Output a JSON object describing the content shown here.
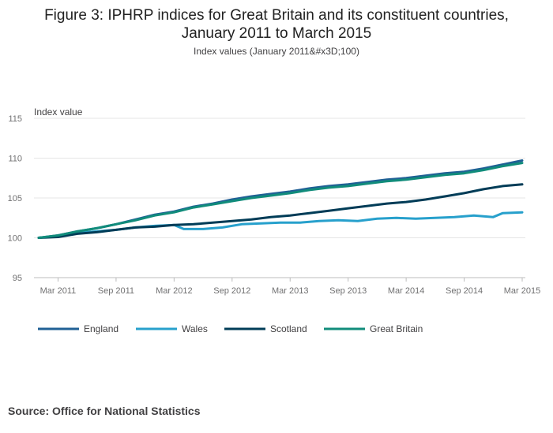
{
  "title_line1": "Figure 3: IPHRP indices for Great Britain and its constituent countries,",
  "title_line2": "January 2011 to March 2015",
  "subtitle": "Index values (January 2011&#x3D;100)",
  "source": "Source: Office for National Statistics",
  "chart_data": {
    "type": "line",
    "ylabel": "Index value",
    "ylim": [
      95,
      115
    ],
    "yticks": [
      "115",
      "110",
      "105",
      "100",
      "95"
    ],
    "xlim": [
      "Jan 2011",
      "Mar 2015"
    ],
    "xticks": [
      "Mar 2011",
      "Sep 2011",
      "Mar 2012",
      "Sep 2012",
      "Mar 2013",
      "Sep 2013",
      "Mar 2014",
      "Sep 2014",
      "Mar 2015"
    ],
    "grid": true,
    "legend_position": "bottom",
    "series": [
      {
        "name": "England",
        "color": "#206095",
        "months": [
          "Jan 2011",
          "Mar 2011",
          "May 2011",
          "Jul 2011",
          "Sep 2011",
          "Nov 2011",
          "Jan 2012",
          "Mar 2012",
          "May 2012",
          "Jul 2012",
          "Sep 2012",
          "Nov 2012",
          "Jan 2013",
          "Mar 2013",
          "May 2013",
          "Jul 2013",
          "Sep 2013",
          "Nov 2013",
          "Jan 2014",
          "Mar 2014",
          "May 2014",
          "Jul 2014",
          "Sep 2014",
          "Nov 2014",
          "Jan 2015",
          "Mar 2015"
        ],
        "values": [
          100.0,
          100.3,
          100.8,
          101.2,
          101.7,
          102.3,
          102.9,
          103.3,
          103.9,
          104.3,
          104.8,
          105.2,
          105.5,
          105.8,
          106.2,
          106.5,
          106.7,
          107.0,
          107.3,
          107.5,
          107.8,
          108.1,
          108.3,
          108.7,
          109.2,
          109.7
        ]
      },
      {
        "name": "Wales",
        "color": "#27A0CC",
        "months": [
          "Jan 2011",
          "Mar 2011",
          "May 2011",
          "Jul 2011",
          "Sep 2011",
          "Nov 2011",
          "Jan 2012",
          "Mar 2012",
          "Apr 2012",
          "Jun 2012",
          "Aug 2012",
          "Oct 2012",
          "Dec 2012",
          "Feb 2013",
          "Apr 2013",
          "Jun 2013",
          "Aug 2013",
          "Oct 2013",
          "Dec 2013",
          "Feb 2014",
          "Apr 2014",
          "Jun 2014",
          "Aug 2014",
          "Oct 2014",
          "Dec 2014",
          "Jan 2015",
          "Mar 2015"
        ],
        "values": [
          100.0,
          100.2,
          100.6,
          100.8,
          101.0,
          101.3,
          101.5,
          101.6,
          101.1,
          101.1,
          101.3,
          101.7,
          101.8,
          101.9,
          101.9,
          102.1,
          102.2,
          102.1,
          102.4,
          102.5,
          102.4,
          102.5,
          102.6,
          102.8,
          102.6,
          103.1,
          103.2
        ]
      },
      {
        "name": "Scotland",
        "color": "#003C57",
        "months": [
          "Jan 2011",
          "Mar 2011",
          "May 2011",
          "Jul 2011",
          "Sep 2011",
          "Nov 2011",
          "Jan 2012",
          "Mar 2012",
          "May 2012",
          "Jul 2012",
          "Sep 2012",
          "Nov 2012",
          "Jan 2013",
          "Mar 2013",
          "May 2013",
          "Jul 2013",
          "Sep 2013",
          "Nov 2013",
          "Jan 2014",
          "Mar 2014",
          "May 2014",
          "Jul 2014",
          "Sep 2014",
          "Nov 2014",
          "Jan 2015",
          "Mar 2015"
        ],
        "values": [
          100.0,
          100.1,
          100.5,
          100.7,
          101.0,
          101.3,
          101.4,
          101.6,
          101.7,
          101.9,
          102.1,
          102.3,
          102.6,
          102.8,
          103.1,
          103.4,
          103.7,
          104.0,
          104.3,
          104.5,
          104.8,
          105.2,
          105.6,
          106.1,
          106.5,
          106.7
        ]
      },
      {
        "name": "Great Britain",
        "color": "#118C7B",
        "months": [
          "Jan 2011",
          "Mar 2011",
          "May 2011",
          "Jul 2011",
          "Sep 2011",
          "Nov 2011",
          "Jan 2012",
          "Mar 2012",
          "May 2012",
          "Jul 2012",
          "Sep 2012",
          "Nov 2012",
          "Jan 2013",
          "Mar 2013",
          "May 2013",
          "Jul 2013",
          "Sep 2013",
          "Nov 2013",
          "Jan 2014",
          "Mar 2014",
          "May 2014",
          "Jul 2014",
          "Sep 2014",
          "Nov 2014",
          "Jan 2015",
          "Mar 2015"
        ],
        "values": [
          100.0,
          100.3,
          100.8,
          101.2,
          101.7,
          102.2,
          102.8,
          103.2,
          103.8,
          104.2,
          104.6,
          105.0,
          105.3,
          105.6,
          106.0,
          106.3,
          106.5,
          106.8,
          107.1,
          107.3,
          107.6,
          107.9,
          108.1,
          108.5,
          109.0,
          109.4
        ]
      }
    ]
  }
}
